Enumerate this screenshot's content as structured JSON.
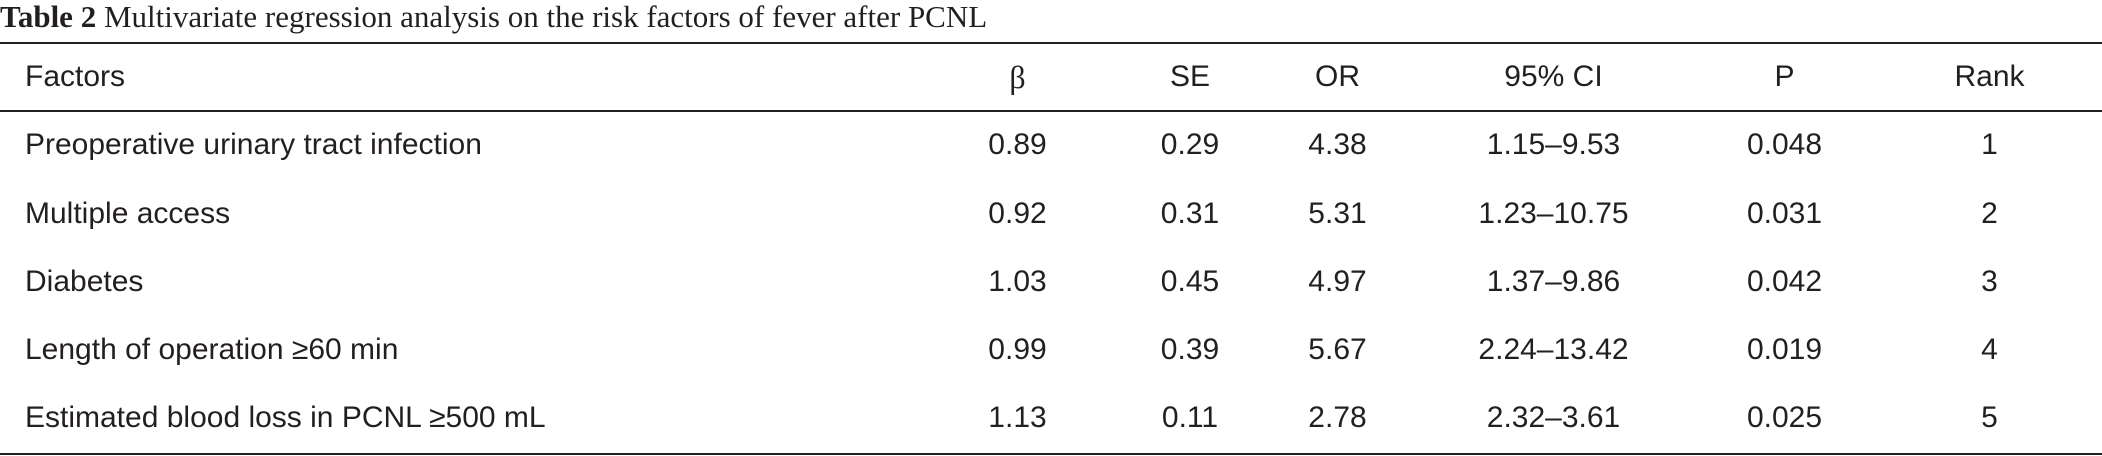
{
  "caption": {
    "label": "Table 2",
    "text": " Multivariate regression analysis on the risk factors of fever after PCNL"
  },
  "table": {
    "headers": {
      "factor": "Factors",
      "beta": "β",
      "se": "SE",
      "or": "OR",
      "ci": "95% CI",
      "p": "P",
      "rank": "Rank"
    },
    "rows": [
      {
        "factor": "Preoperative urinary tract infection",
        "beta": "0.89",
        "se": "0.29",
        "or": "4.38",
        "ci": "1.15–9.53",
        "p": "0.048",
        "rank": "1"
      },
      {
        "factor": "Multiple access",
        "beta": "0.92",
        "se": "0.31",
        "or": "5.31",
        "ci": "1.23–10.75",
        "p": "0.031",
        "rank": "2"
      },
      {
        "factor": "Diabetes",
        "beta": "1.03",
        "se": "0.45",
        "or": "4.97",
        "ci": "1.37–9.86",
        "p": "0.042",
        "rank": "3"
      },
      {
        "factor": "Length of operation ≥60 min",
        "beta": "0.99",
        "se": "0.39",
        "or": "5.67",
        "ci": "2.24–13.42",
        "p": "0.019",
        "rank": "4"
      },
      {
        "factor": "Estimated blood loss in PCNL ≥500 mL",
        "beta": "1.13",
        "se": "0.11",
        "or": "2.78",
        "ci": "2.32–3.61",
        "p": "0.025",
        "rank": "5"
      }
    ]
  }
}
